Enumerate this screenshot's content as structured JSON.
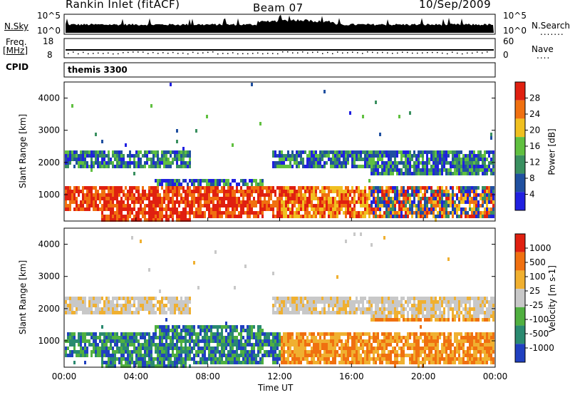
{
  "header": {
    "station": "Rankin Inlet (fitACF)",
    "beam": "Beam 07",
    "date": "10/Sep/2009"
  },
  "top_panels": {
    "nsky_label": "N.Sky",
    "nsky_ticks": [
      "10^5",
      "10^0"
    ],
    "nsearch_label": "N.Search",
    "nsearch_ticks": [
      "10^5",
      "10^0"
    ],
    "freq_label": "Freq.",
    "freq_unit": "[MHz]",
    "freq_ticks": [
      "18",
      "8"
    ],
    "nave_label": "Nave",
    "nave_ticks": [
      "60",
      "0"
    ],
    "cpid_label": "CPID",
    "cpid_value": "themis 3300"
  },
  "chart_data": [
    {
      "type": "heatmap",
      "name": "power",
      "ylabel": "Slant Range [km]",
      "ylim": [
        180,
        4500
      ],
      "yticks": [
        "4000",
        "3000",
        "2000",
        "1000"
      ],
      "colorbar_label": "Power [dB]",
      "colorbar_ticks": [
        "28",
        "24",
        "20",
        "16",
        "12",
        "8",
        "4"
      ],
      "colors": [
        "#2020e0",
        "#2050a0",
        "#3a9060",
        "#60c040",
        "#f0c020",
        "#f07010",
        "#e02010"
      ]
    },
    {
      "type": "heatmap",
      "name": "velocity",
      "ylabel": "Slant Range [km]",
      "ylim": [
        180,
        4500
      ],
      "yticks": [
        "4000",
        "3000",
        "2000",
        "1000"
      ],
      "colorbar_label": "Velocity [m s-1]",
      "colorbar_ticks": [
        "1000",
        "500",
        "100",
        "25",
        "-25",
        "-100",
        "-500",
        "-1000"
      ],
      "colors": [
        "#2040c0",
        "#2a8a70",
        "#50b040",
        "#c8c8c8",
        "#f0b030",
        "#f07010",
        "#e02010"
      ]
    }
  ],
  "xaxis": {
    "label": "Time UT",
    "ticks": [
      "00:00",
      "04:00",
      "08:00",
      "12:00",
      "16:00",
      "20:00",
      "00:00"
    ]
  }
}
